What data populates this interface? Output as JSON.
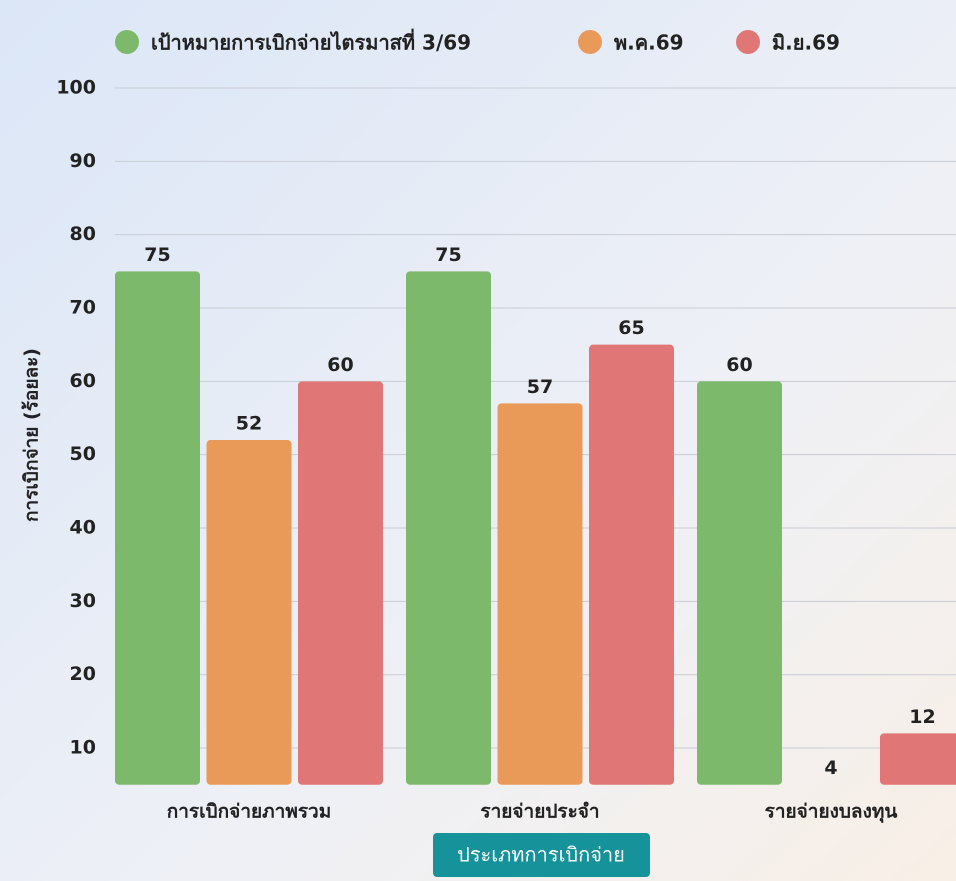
{
  "chart_data": {
    "type": "bar",
    "categories": [
      "การเบิกจ่ายภาพรวม",
      "รายจ่ายประจำ",
      "รายจ่ายงบลงทุน"
    ],
    "series": [
      {
        "name": "เป้าหมายการเบิกจ่ายไตรมาสที่ 3/69",
        "color": "#7db96b",
        "values": [
          75,
          75,
          60
        ]
      },
      {
        "name": "พ.ค.69",
        "color": "#e99a58",
        "values": [
          52,
          57,
          4
        ]
      },
      {
        "name": "มิ.ย.69",
        "color": "#e07675",
        "values": [
          60,
          65,
          12
        ]
      }
    ],
    "x_label": "ประเภทการเบิกจ่าย",
    "y_label": "การเบิกจ่าย (ร้อยละ)",
    "ylim": [
      5,
      100
    ],
    "yticks": [
      10,
      20,
      30,
      40,
      50,
      60,
      70,
      80,
      90,
      100
    ],
    "grid": true,
    "legend": "top"
  }
}
